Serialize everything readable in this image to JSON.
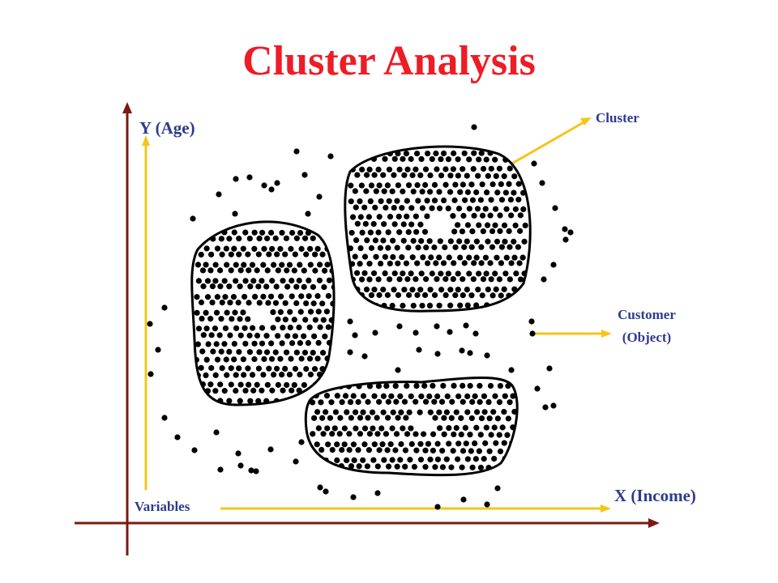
{
  "title": "Cluster Analysis",
  "labels": {
    "y_axis": "Y (Age)",
    "x_axis": "X (Income)",
    "variables": "Variables",
    "cluster": "Cluster",
    "customer_line1": "Customer",
    "customer_line2": "(Object)"
  },
  "colors": {
    "title": "#ee1c25",
    "axis": "#7a1a12",
    "arrow": "#f5c518",
    "label": "#2e3b8c",
    "dot": "#000000"
  },
  "clusters": [
    "left",
    "top-right",
    "bottom"
  ]
}
